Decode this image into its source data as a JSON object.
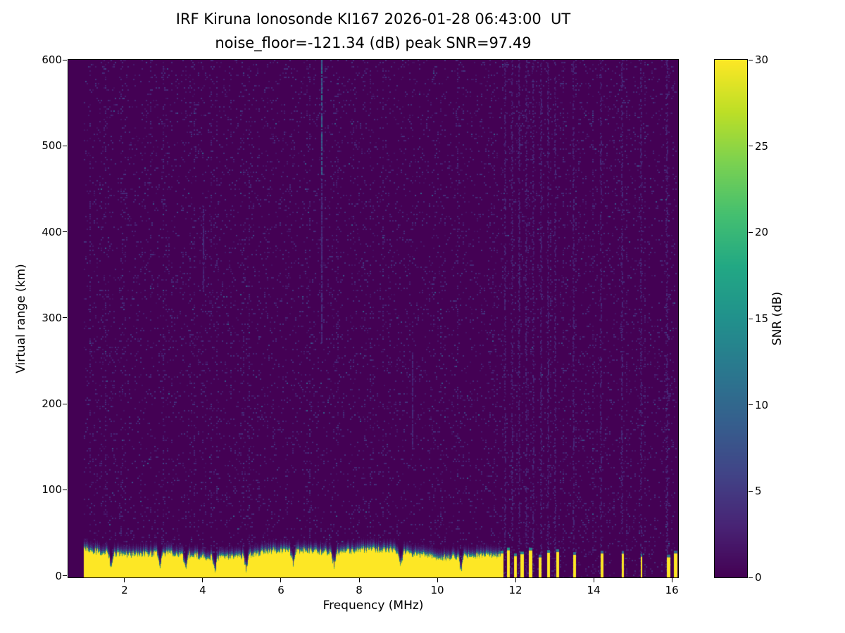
{
  "title": {
    "line1": "IRF Kiruna Ionosonde KI167 2026-01-28 06:43:00  UT",
    "line2": "noise_floor=-121.34 (dB) peak SNR=97.49"
  },
  "chart_data": {
    "type": "heatmap",
    "xlabel": "Frequency (MHz)",
    "ylabel": "Virtual range (km)",
    "xlim": [
      0.56,
      16.16
    ],
    "ylim": [
      -2,
      600
    ],
    "xticks": [
      2,
      4,
      6,
      8,
      10,
      12,
      14,
      16
    ],
    "yticks": [
      0,
      100,
      200,
      300,
      400,
      500,
      600
    ],
    "grid": false,
    "colorbar": {
      "label": "SNR (dB)",
      "min": 0,
      "max": 30,
      "ticks": [
        0,
        5,
        10,
        15,
        20,
        25,
        30
      ],
      "colormap": "viridis",
      "position": "right"
    },
    "colormap_stops": [
      [
        0.0,
        "#440154"
      ],
      [
        0.1,
        "#482475"
      ],
      [
        0.2,
        "#414487"
      ],
      [
        0.3,
        "#355f8d"
      ],
      [
        0.4,
        "#2a788e"
      ],
      [
        0.5,
        "#21918c"
      ],
      [
        0.6,
        "#22a884"
      ],
      [
        0.7,
        "#44bf70"
      ],
      [
        0.8,
        "#7ad151"
      ],
      [
        0.9,
        "#bddf26"
      ],
      [
        1.0,
        "#fde725"
      ]
    ],
    "signal": {
      "description": "Ionogram: saturated ground-return band (SNR >= 30 dB) from ~0 to ~30 km virtual range across 1-11.6 MHz, becoming intermittent vertical bars above 11.6 MHz; faint speckle noise (SNR 1-6 dB) over whole range with noisier vertical columns near 12-13 MHz; teal interference streak near 7 MHz at 460-600 km.",
      "data_fmin": 0.95,
      "data_fmax": 16.12,
      "noise_base_snr": 0.4,
      "speckle_probability": 0.08,
      "seed": 167,
      "ground_band": {
        "f_start": 0.95,
        "f_end": 11.62,
        "base_height_km": 26,
        "height_jitter_km": 7,
        "gradient_thickness_km": 11,
        "notches_mhz": [
          1.65,
          2.9,
          3.55,
          4.3,
          5.1,
          6.3,
          7.35,
          9.05,
          10.6
        ]
      },
      "bar_region": {
        "f_start": 11.62,
        "f_end": 13.15,
        "bar_width_mhz": 0.07,
        "gap_width_mhz": 0.1,
        "height_km": 26
      },
      "sparse_bars_mhz": [
        13.48,
        14.18,
        14.72,
        15.2,
        15.88,
        16.06
      ],
      "sparse_bar_width_mhz": 0.06,
      "sparse_bar_height_km": 25,
      "noisy_columns_mhz": [
        11.72,
        11.9,
        12.08,
        12.26,
        12.45,
        12.64,
        12.82,
        13.0,
        13.48,
        14.18,
        14.72,
        15.2,
        15.88
      ],
      "streaks": [
        {
          "f": 7.03,
          "km_from": 460,
          "km_to": 600,
          "snr": 9
        },
        {
          "f": 7.03,
          "km_from": 270,
          "km_to": 460,
          "snr": 3.5
        },
        {
          "f": 4.0,
          "km_from": 330,
          "km_to": 430,
          "snr": 3
        },
        {
          "f": 9.35,
          "km_from": 150,
          "km_to": 260,
          "snr": 3
        }
      ]
    }
  },
  "layout_colors": {
    "background": "#ffffff",
    "axes_color": "#000000",
    "text_color": "#000000"
  }
}
